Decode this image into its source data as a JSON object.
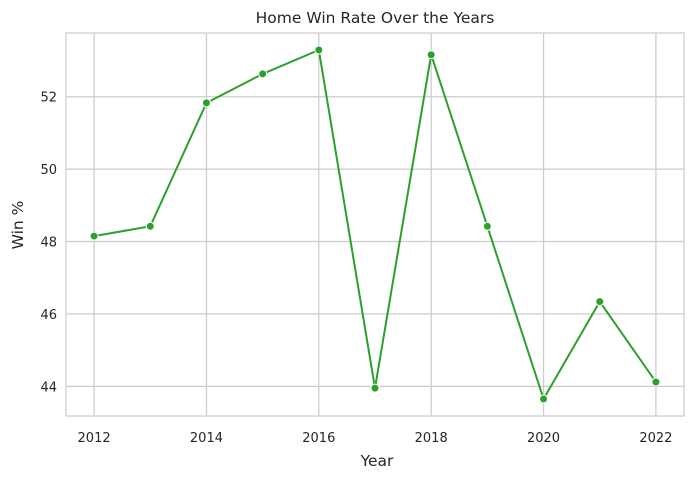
{
  "chart_data": {
    "type": "line",
    "title": "Home Win Rate Over the Years",
    "xlabel": "Year",
    "ylabel": "Win %",
    "x": [
      2012,
      2013,
      2014,
      2015,
      2016,
      2017,
      2018,
      2019,
      2020,
      2021,
      2022
    ],
    "series": [
      {
        "values": [
          48.15,
          48.42,
          51.83,
          52.63,
          53.29,
          43.95,
          53.16,
          48.42,
          43.65,
          46.34,
          44.12
        ],
        "color": "#2ca02c"
      }
    ],
    "xticks": [
      "2012",
      "2014",
      "2016",
      "2018",
      "2020",
      "2022"
    ],
    "yticks": [
      "44",
      "46",
      "48",
      "50",
      "52"
    ],
    "xlim": [
      2011.5,
      2022.5
    ],
    "ylim": [
      43.18,
      53.76
    ],
    "grid": true,
    "marker": "circle"
  }
}
